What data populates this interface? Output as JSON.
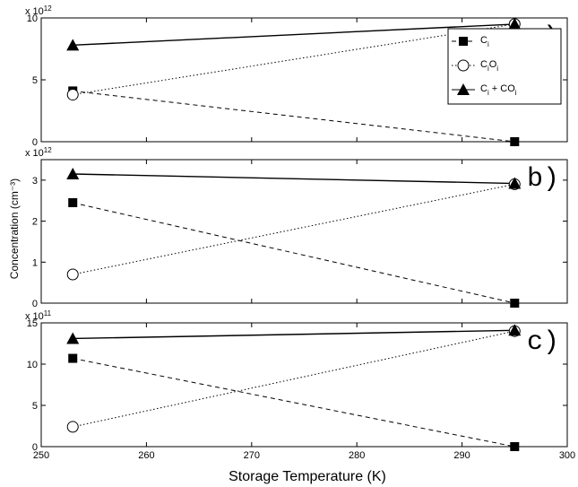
{
  "figure": {
    "xlabel": "Storage Temperature (K)",
    "ylabel": "Concentration (cm⁻³)"
  },
  "chart_data": [
    {
      "type": "line",
      "panel_label": "a)",
      "x": [
        253,
        295
      ],
      "xlim": [
        250,
        300
      ],
      "xticks": [
        250,
        260,
        270,
        280,
        290,
        300
      ],
      "ylim": [
        0,
        10
      ],
      "yticks": [
        0,
        5,
        10
      ],
      "y_multiplier": "x 10",
      "y_exponent": "12",
      "series": [
        {
          "name": "Ci",
          "values": [
            4.1,
            0.0
          ],
          "marker": "square",
          "line": "dashed"
        },
        {
          "name": "CiOi",
          "values": [
            3.8,
            9.5
          ],
          "marker": "circle",
          "line": "dotted"
        },
        {
          "name": "Ci + CiOi",
          "values": [
            7.8,
            9.5
          ],
          "marker": "triangle",
          "line": "solid"
        }
      ],
      "legend": {
        "placement": "right",
        "entries": [
          {
            "main": "C",
            "sub": "i"
          },
          {
            "main": "C",
            "sub": "i",
            "main2": "O",
            "sub2": "i"
          },
          {
            "main": "C",
            "sub": "i",
            "main2": " + CO",
            "sub2": "i"
          }
        ]
      }
    },
    {
      "type": "line",
      "panel_label": "b)",
      "x": [
        253,
        295
      ],
      "xlim": [
        250,
        300
      ],
      "xticks": [
        250,
        260,
        270,
        280,
        290,
        300
      ],
      "ylim": [
        0,
        3.5
      ],
      "yticks": [
        0,
        1,
        2,
        3
      ],
      "y_multiplier": "x 10",
      "y_exponent": "12",
      "series": [
        {
          "name": "Ci",
          "values": [
            2.45,
            0.0
          ],
          "marker": "square",
          "line": "dashed"
        },
        {
          "name": "CiOi",
          "values": [
            0.7,
            2.9
          ],
          "marker": "circle",
          "line": "dotted"
        },
        {
          "name": "Ci + CiOi",
          "values": [
            3.15,
            2.92
          ],
          "marker": "triangle",
          "line": "solid"
        }
      ]
    },
    {
      "type": "line",
      "panel_label": "c)",
      "x": [
        253,
        295
      ],
      "xlim": [
        250,
        300
      ],
      "xticks": [
        250,
        260,
        270,
        280,
        290,
        300
      ],
      "ylim": [
        0,
        15
      ],
      "yticks": [
        0,
        5,
        10,
        15
      ],
      "y_multiplier": "x 10",
      "y_exponent": "11",
      "series": [
        {
          "name": "Ci",
          "values": [
            10.7,
            0.0
          ],
          "marker": "square",
          "line": "dashed"
        },
        {
          "name": "CiOi",
          "values": [
            2.4,
            14.0
          ],
          "marker": "circle",
          "line": "dotted"
        },
        {
          "name": "Ci + CiOi",
          "values": [
            13.1,
            14.1
          ],
          "marker": "triangle",
          "line": "solid"
        }
      ]
    }
  ]
}
